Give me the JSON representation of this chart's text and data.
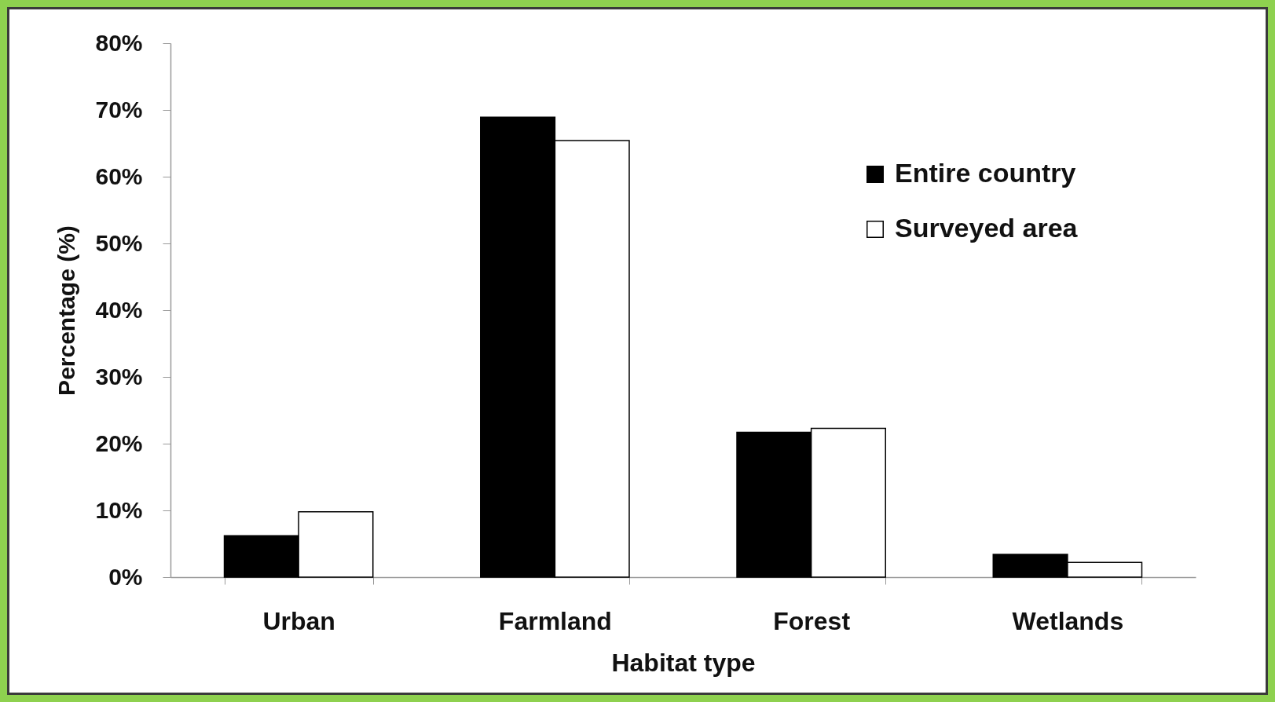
{
  "chart_data": {
    "type": "bar",
    "xlabel": "Habitat type",
    "ylabel": "Percentage (%)",
    "categories": [
      "Urban",
      "Farmland",
      "Forest",
      "Wetlands"
    ],
    "series": [
      {
        "name": "Entire country",
        "color": "#000000",
        "values": [
          6.2,
          68.9,
          21.7,
          3.4
        ]
      },
      {
        "name": "Surveyed area",
        "color": "#ffffff",
        "values": [
          9.8,
          65.4,
          22.3,
          2.2
        ]
      }
    ],
    "ylim": [
      0,
      80
    ],
    "yticks": [
      {
        "value": 0,
        "label": "0%"
      },
      {
        "value": 10,
        "label": "10%"
      },
      {
        "value": 20,
        "label": "20%"
      },
      {
        "value": 30,
        "label": "30%"
      },
      {
        "value": 40,
        "label": "40%"
      },
      {
        "value": 50,
        "label": "50%"
      },
      {
        "value": 60,
        "label": "60%"
      },
      {
        "value": 70,
        "label": "70%"
      },
      {
        "value": 80,
        "label": "80%"
      }
    ],
    "grid": false,
    "legend": "top right"
  }
}
